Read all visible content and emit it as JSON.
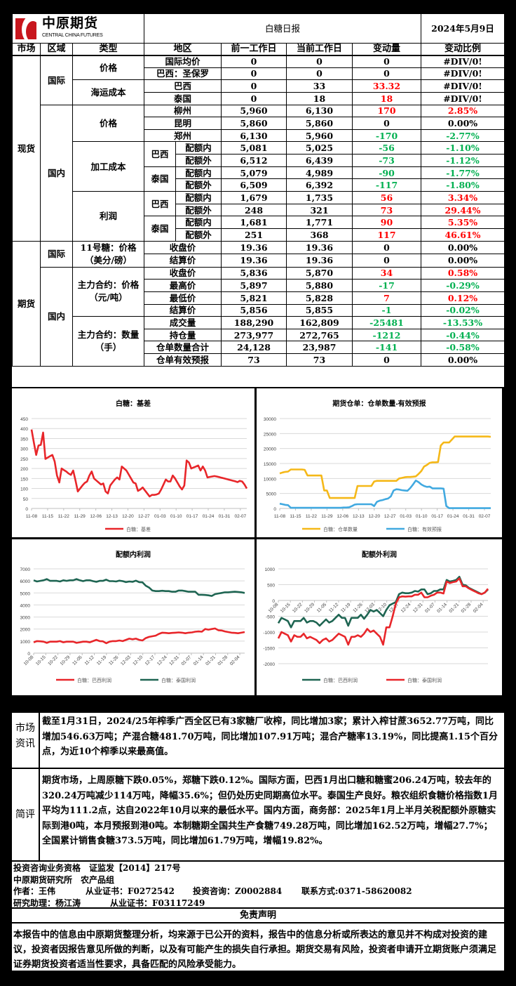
{
  "header": {
    "logo_cn": "中原期货",
    "logo_en": "CENTRAL CHINA FUTURES",
    "title": "白糖日报",
    "date": "2024年5月9日"
  },
  "columns": [
    "市场",
    "区域",
    "类型",
    "地区",
    "前一工作日",
    "当前工作日",
    "变动量",
    "变动比例"
  ],
  "colors": {
    "up": "#ff0000",
    "down": "#00b050"
  },
  "rows": [
    {
      "market": "现货",
      "region": "国际",
      "type": "价格",
      "sub": "",
      "area": "国际均价",
      "prev": "0",
      "curr": "0",
      "chg": "0",
      "pct": "#DIV/0!",
      "trend": ""
    },
    {
      "market": "现货",
      "region": "国际",
      "type": "价格",
      "sub": "",
      "area": "巴西：圣保罗",
      "prev": "0",
      "curr": "0",
      "chg": "0",
      "pct": "#DIV/0!",
      "trend": ""
    },
    {
      "market": "现货",
      "region": "国际",
      "type": "海运成本",
      "sub": "",
      "area": "巴西",
      "prev": "0",
      "curr": "33",
      "chg": "33.32",
      "pct": "#DIV/0!",
      "trend": "up",
      "pct_trend": ""
    },
    {
      "market": "现货",
      "region": "国际",
      "type": "海运成本",
      "sub": "",
      "area": "泰国",
      "prev": "0",
      "curr": "18",
      "chg": "18",
      "pct": "#DIV/0!",
      "trend": "up",
      "pct_trend": ""
    },
    {
      "market": "现货",
      "region": "国内",
      "type": "价格",
      "sub": "",
      "area": "柳州",
      "prev": "5,960",
      "curr": "6,130",
      "chg": "170",
      "pct": "2.85%",
      "trend": "up"
    },
    {
      "market": "现货",
      "region": "国内",
      "type": "价格",
      "sub": "",
      "area": "昆明",
      "prev": "5,860",
      "curr": "5,860",
      "chg": "0",
      "pct": "0.00%",
      "trend": ""
    },
    {
      "market": "现货",
      "region": "国内",
      "type": "价格",
      "sub": "",
      "area": "郑州",
      "prev": "6,130",
      "curr": "5,960",
      "chg": "-170",
      "pct": "-2.77%",
      "trend": "down"
    },
    {
      "market": "现货",
      "region": "国内",
      "type": "加工成本",
      "sub": "巴西",
      "area": "配额内",
      "prev": "5,081",
      "curr": "5,025",
      "chg": "-56",
      "pct": "-1.10%",
      "trend": "down"
    },
    {
      "market": "现货",
      "region": "国内",
      "type": "加工成本",
      "sub": "巴西",
      "area": "配额外",
      "prev": "6,512",
      "curr": "6,439",
      "chg": "-73",
      "pct": "-1.12%",
      "trend": "down"
    },
    {
      "market": "现货",
      "region": "国内",
      "type": "加工成本",
      "sub": "泰国",
      "area": "配额内",
      "prev": "5,079",
      "curr": "4,989",
      "chg": "-90",
      "pct": "-1.77%",
      "trend": "down"
    },
    {
      "market": "现货",
      "region": "国内",
      "type": "加工成本",
      "sub": "泰国",
      "area": "配额外",
      "prev": "6,509",
      "curr": "6,392",
      "chg": "-117",
      "pct": "-1.80%",
      "trend": "down"
    },
    {
      "market": "现货",
      "region": "国内",
      "type": "利润",
      "sub": "巴西",
      "area": "配额内",
      "prev": "1,679",
      "curr": "1,735",
      "chg": "56",
      "pct": "3.34%",
      "trend": "up"
    },
    {
      "market": "现货",
      "region": "国内",
      "type": "利润",
      "sub": "巴西",
      "area": "配额外",
      "prev": "248",
      "curr": "321",
      "chg": "73",
      "pct": "29.44%",
      "trend": "up"
    },
    {
      "market": "现货",
      "region": "国内",
      "type": "利润",
      "sub": "泰国",
      "area": "配额内",
      "prev": "1,681",
      "curr": "1,771",
      "chg": "90",
      "pct": "5.35%",
      "trend": "up"
    },
    {
      "market": "现货",
      "region": "国内",
      "type": "利润",
      "sub": "泰国",
      "area": "配额外",
      "prev": "251",
      "curr": "368",
      "chg": "117",
      "pct": "46.61%",
      "trend": "up"
    },
    {
      "market": "期货",
      "region": "国际",
      "type": "11号糖：价格（美分/磅）",
      "sub": "",
      "area": "收盘价",
      "prev": "19.36",
      "curr": "19.36",
      "chg": "0",
      "pct": "0.00%",
      "trend": ""
    },
    {
      "market": "期货",
      "region": "国际",
      "type": "11号糖：价格（美分/磅）",
      "sub": "",
      "area": "结算价",
      "prev": "19.36",
      "curr": "19.36",
      "chg": "0",
      "pct": "0.00%",
      "trend": ""
    },
    {
      "market": "期货",
      "region": "国内",
      "type": "主力合约：价格（元/吨）",
      "sub": "",
      "area": "收盘价",
      "prev": "5,836",
      "curr": "5,870",
      "chg": "34",
      "pct": "0.58%",
      "trend": "up"
    },
    {
      "market": "期货",
      "region": "国内",
      "type": "主力合约：价格（元/吨）",
      "sub": "",
      "area": "最高价",
      "prev": "5,897",
      "curr": "5,880",
      "chg": "-17",
      "pct": "-0.29%",
      "trend": "down"
    },
    {
      "market": "期货",
      "region": "国内",
      "type": "主力合约：价格（元/吨）",
      "sub": "",
      "area": "最低价",
      "prev": "5,821",
      "curr": "5,828",
      "chg": "7",
      "pct": "0.12%",
      "trend": "up"
    },
    {
      "market": "期货",
      "region": "国内",
      "type": "主力合约：价格（元/吨）",
      "sub": "",
      "area": "结算价",
      "prev": "5,856",
      "curr": "5,855",
      "chg": "-1",
      "pct": "-0.02%",
      "trend": "down"
    },
    {
      "market": "期货",
      "region": "国内",
      "type": "主力合约：数量（手）",
      "sub": "",
      "area": "成交量",
      "prev": "188,290",
      "curr": "162,809",
      "chg": "-25481",
      "pct": "-13.53%",
      "trend": "down"
    },
    {
      "market": "期货",
      "region": "国内",
      "type": "主力合约：数量（手）",
      "sub": "",
      "area": "持仓量",
      "prev": "273,977",
      "curr": "272,765",
      "chg": "-1212",
      "pct": "-0.44%",
      "trend": "down"
    },
    {
      "market": "期货",
      "region": "国内",
      "type": "主力合约：数量（手）",
      "sub": "",
      "area": "仓单数量合计",
      "prev": "24,128",
      "curr": "23,987",
      "chg": "-141",
      "pct": "-0.58%",
      "trend": "down"
    },
    {
      "market": "期货",
      "region": "国内",
      "type": "主力合约：数量（手）",
      "sub": "",
      "area": "仓单有效预报",
      "prev": "73",
      "curr": "73",
      "chg": "0",
      "pct": "0.00%",
      "trend": ""
    }
  ],
  "chart_data": [
    {
      "type": "line",
      "title": "白糖：基差",
      "ylim": [
        0,
        450
      ],
      "yticks": [
        0,
        50,
        100,
        150,
        200,
        250,
        300,
        350,
        400,
        450
      ],
      "xticks": [
        "11-08",
        "11-15",
        "11-22",
        "11-29",
        "12-06",
        "12-13",
        "12-20",
        "12-27",
        "01-03",
        "01-10",
        "01-17",
        "01-24",
        "01-31",
        "02-07"
      ],
      "grid": true,
      "legend": "bottom",
      "series": [
        {
          "name": "白糖：基差",
          "color": "#e8262a",
          "values": [
            395,
            330,
            268,
            315,
            318,
            380,
            248,
            255,
            262,
            268,
            235,
            165,
            130,
            200,
            192,
            185,
            175,
            168,
            190,
            140,
            85,
            100,
            115,
            128,
            135,
            165,
            185,
            150,
            140,
            130,
            120,
            125,
            85,
            75,
            115,
            130,
            145,
            155,
            145,
            210,
            200,
            190,
            170,
            150,
            130,
            125,
            88,
            95,
            105,
            90,
            75,
            60,
            68,
            68,
            70,
            75,
            95,
            120,
            145,
            135,
            135,
            165,
            150,
            130,
            110,
            95,
            115,
            240,
            230,
            200,
            205,
            210,
            215,
            190,
            210,
            190,
            155,
            158,
            160,
            162,
            160,
            157,
            154,
            151,
            148,
            145,
            142,
            139,
            136,
            132,
            138,
            135,
            120,
            100
          ]
        }
      ]
    },
    {
      "type": "line",
      "title": "期货仓单：仓单数量-有效预报",
      "ylim": [
        0,
        30000
      ],
      "yticks": [
        0,
        5000,
        10000,
        15000,
        20000,
        25000,
        30000
      ],
      "xticks": [
        "11-08",
        "11-15",
        "11-22",
        "11-29",
        "12-06",
        "12-13",
        "12-20",
        "12-27",
        "01-03",
        "01-10",
        "01-17",
        "01-24",
        "01-31",
        "02-07"
      ],
      "grid": true,
      "legend": "bottom",
      "series": [
        {
          "name": "白糖：仓单数量",
          "color": "#f5b818",
          "values": [
            11700,
            12000,
            12200,
            12300,
            13000,
            13000,
            13000,
            13000,
            13000,
            12900,
            11000,
            11000,
            11000,
            11000,
            11000,
            11000,
            6000,
            6000,
            3500,
            3500,
            3500,
            3500,
            3500,
            3500,
            3500,
            3500,
            3500,
            3500,
            7500,
            7500,
            7500,
            7500,
            7500,
            7500,
            9000,
            9200,
            9200,
            9200,
            9200,
            9200,
            9200,
            9200,
            9200,
            10000,
            10200,
            10400,
            10500,
            10500,
            10600,
            10700,
            11500,
            12500,
            14000,
            14500,
            15200,
            15400,
            15400,
            15500,
            21000,
            22000,
            22000,
            22000,
            23000,
            24000,
            24000,
            24000,
            24000,
            24000,
            24000,
            24000,
            24000,
            24000,
            24000,
            24000,
            24000,
            24000,
            23900
          ]
        },
        {
          "name": "白糖：有效预报",
          "color": "#41a9e0",
          "values": [
            1600,
            1400,
            1200,
            1100,
            200,
            200,
            200,
            200,
            200,
            200,
            200,
            200,
            200,
            200,
            200,
            200,
            200,
            200,
            200,
            200,
            200,
            200,
            200,
            300,
            300,
            400,
            800,
            1300,
            1400,
            1400,
            1400,
            1400,
            1400,
            1400,
            800,
            2200,
            2600,
            2800,
            3100,
            3300,
            4000,
            6000,
            6400,
            6300,
            6100,
            6000,
            5900,
            6800,
            8000,
            9300,
            8800,
            8000,
            7500,
            7200,
            7300,
            6700,
            6700,
            6700,
            6700,
            6600,
            800,
            100,
            100,
            100,
            100,
            100,
            100,
            100,
            100,
            100,
            100,
            100,
            100,
            100,
            100,
            100,
            100
          ]
        }
      ]
    },
    {
      "type": "line",
      "title": "配额内利润",
      "ylim": [
        0,
        7000
      ],
      "yticks": [
        0,
        1000,
        2000,
        3000,
        4000,
        5000,
        6000,
        7000
      ],
      "xticks": [
        "10-08",
        "10-15",
        "10-22",
        "10-29",
        "11-05",
        "11-12",
        "11-19",
        "11-26",
        "12-03",
        "12-10",
        "12-17",
        "12-24",
        "12-31",
        "01-07",
        "01-14",
        "01-21",
        "01-28",
        "02-04"
      ],
      "grid": true,
      "legend": "bottom",
      "series": [
        {
          "name": "白糖：巴西利润",
          "color": "#e8262a",
          "values": [
            900,
            1000,
            980,
            950,
            850,
            950,
            950,
            950,
            1000,
            900,
            950,
            950,
            950,
            850,
            900,
            950,
            950,
            900,
            1000,
            1100,
            1000,
            980,
            820,
            950,
            1000,
            1000,
            1050,
            1000,
            1100,
            1200,
            1150,
            1200,
            1100,
            1050,
            1250,
            1350,
            1400,
            1450,
            1600,
            1700,
            1680,
            1650,
            1680,
            1700,
            1720,
            1700,
            1650,
            1700,
            1720,
            1780,
            1800,
            1780,
            2000,
            1950,
            2000,
            2050,
            1900,
            1880,
            1800,
            1750,
            1700,
            1680,
            1650,
            1700,
            1750
          ]
        },
        {
          "name": "白糖：泰国利润",
          "color": "#1e6552",
          "values": [
            6050,
            5950,
            6000,
            6050,
            6150,
            6000,
            6000,
            6000,
            5950,
            6050,
            6000,
            6050,
            6050,
            6150,
            6050,
            5980,
            6050,
            6050,
            5980,
            5920,
            6000,
            6000,
            6100,
            5980,
            5980,
            5950,
            6020,
            5980,
            5900,
            5950,
            5920,
            6020,
            5900,
            5880,
            5600,
            5450,
            5200,
            5150,
            5150,
            5180,
            5150,
            5150,
            5100,
            5100,
            5200,
            5200,
            5150,
            5100,
            5100,
            5100,
            4850,
            4850,
            4830,
            4800,
            4750,
            4900,
            4950,
            5000,
            5050,
            5050,
            5080,
            5100,
            5080,
            5050,
            5000
          ]
        }
      ]
    },
    {
      "type": "line",
      "title": "配额外利润",
      "ylim": [
        -2000,
        1000
      ],
      "yticks": [
        -2000,
        -1500,
        -1000,
        -500,
        0,
        500,
        1000
      ],
      "xticks": [
        "10-08",
        "10-15",
        "10-22",
        "10-29",
        "11-05",
        "11-12",
        "11-19",
        "11-26",
        "12-03",
        "12-10",
        "12-17",
        "12-24",
        "12-31",
        "01-07",
        "01-14",
        "01-21",
        "01-28",
        "02-04"
      ],
      "grid": true,
      "legend": "bottom",
      "series": [
        {
          "name": "白糖：巴西利润",
          "color": "#1e6552",
          "values": [
            -720,
            -550,
            -600,
            -650,
            -850,
            -650,
            -650,
            -650,
            -550,
            -700,
            -650,
            -650,
            -700,
            -800,
            -700,
            -600,
            -700,
            -650,
            -550,
            -450,
            -550,
            -550,
            -800,
            -550,
            -550,
            -550,
            -450,
            -580,
            -450,
            -300,
            -350,
            -300,
            -400,
            -500,
            -300,
            -150,
            -100,
            -50,
            200,
            250,
            230,
            230,
            250,
            300,
            280,
            350,
            350,
            200,
            230,
            300,
            300,
            350,
            350,
            650,
            600,
            620,
            650,
            750,
            500,
            480,
            400,
            350,
            300,
            250,
            200,
            250,
            350
          ]
        },
        {
          "name": "白糖：泰国利润",
          "color": "#e8262a",
          "values": [
            -1200,
            -1000,
            -1050,
            -1100,
            -1300,
            -1100,
            -1150,
            -1150,
            -1050,
            -1200,
            -1150,
            -1200,
            -1250,
            -1350,
            -1250,
            -1200,
            -1300,
            -1250,
            -1150,
            -1050,
            -1100,
            -1150,
            -1400,
            -1150,
            -1150,
            -1100,
            -1150,
            -1050,
            -900,
            -1000,
            -950,
            -1050,
            -1150,
            -1400,
            -850,
            -850,
            -500,
            -100,
            100,
            130,
            120,
            130,
            130,
            180,
            180,
            250,
            100,
            100,
            150,
            180,
            250,
            250,
            220,
            600,
            550,
            580,
            600,
            700,
            450,
            450,
            380,
            330,
            280,
            230,
            200,
            250,
            370
          ]
        }
      ]
    }
  ],
  "market_info": {
    "label": "市场资讯",
    "text": "截至1月31日，2024/25年榨季广西全区已有3家糖厂收榨，同比增加3家；累计入榨甘蔗3652.77万吨，同比增加546.63万吨；产混合糖481.70万吨，同比增加107.91万吨；混合产糖率13.19%，同比提高1.15个百分点，为近10个榨季以来最高值。"
  },
  "comment": {
    "label": "简评",
    "text": "期货市场，上周原糖下跌0.05%，郑糖下跌0.12%。国际方面，巴西1月出口糖和糖蜜206.24万吨，较去年的320.24万吨减少114万吨，降幅35.6%；但仍处历史同期高位水平。泰国生产良好。粮农组织食糖价格指数1月平均为111.2点，达自2022年10月以来的最低水平。国内方面，商务部：2025年1月上半月关税配额外原糖实际到港0吨，本月预报到港0吨。本制糖期全国共生产食糖749.28万吨，同比增加162.52万吨，增幅27.7%；全国累计销售食糖373.5万吨，同比增加61.79万吨，增幅19.82%。"
  },
  "info": {
    "line1": "投资咨询业务资格　证监发【2014】217号",
    "line2": "中原期货研究所　农产品组",
    "author": "作者：王伟",
    "author_cert": "从业证书：F0272542",
    "advisor": "投资咨询：Z0002884",
    "contact": "联系方式:0371-58620082",
    "assistant": "研究助理：杨江涛",
    "assistant_cert": "从业证书：F03117249"
  },
  "disclaimer": {
    "title": "免责声明",
    "text": "本报告中的信息由中原期货整理分析，均来源于已公开的资料，报告中的信息分析或所表达的意见并不构成对投资的建议，投资者因报告意见所做的判断，以及有可能产生的损失自行承担。期货交易有风险，投资者申请开立期货账户须满足证券期货投资者适当性要求，具备匹配的风险承受能力。"
  }
}
